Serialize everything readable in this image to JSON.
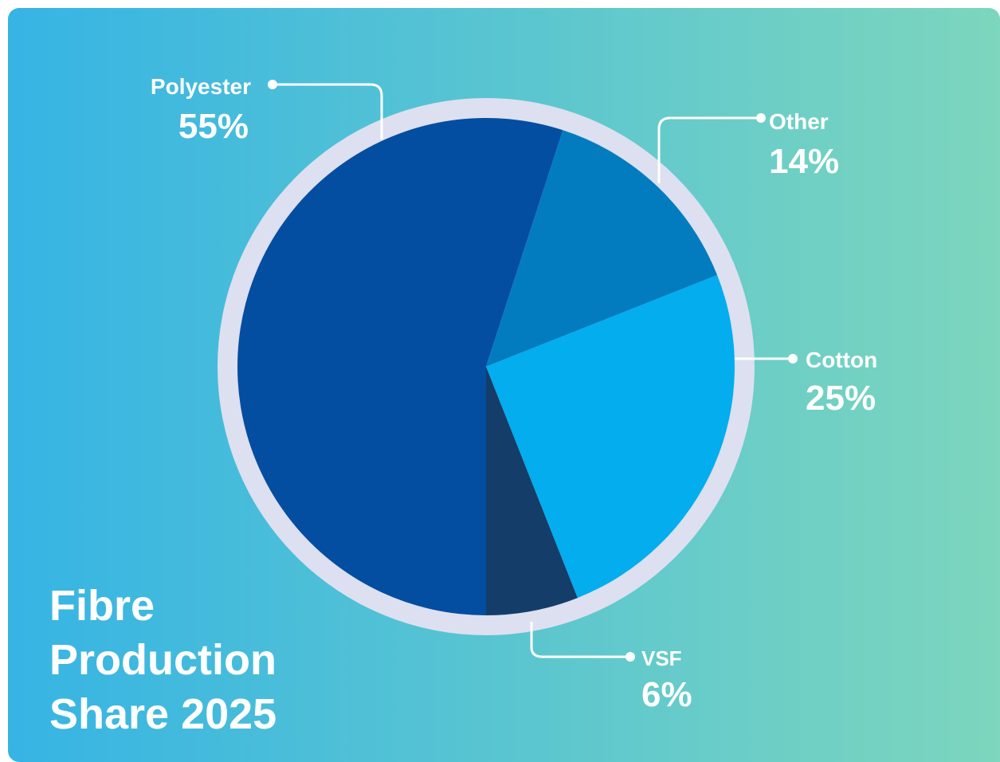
{
  "chart_data": {
    "type": "pie",
    "title": "Fibre\nProduction\nShare 2025",
    "slices": [
      {
        "label": "Polyester",
        "value": 55,
        "display": "55%",
        "color": "#034EA1"
      },
      {
        "label": "Other",
        "value": 14,
        "display": "14%",
        "color": "#037CBF"
      },
      {
        "label": "Cotton",
        "value": 25,
        "display": "25%",
        "color": "#03ADEE"
      },
      {
        "label": "VSF",
        "value": 6,
        "display": "6%",
        "color": "#143D6A"
      }
    ],
    "start_slice": "VSF",
    "direction": "counter-clockwise from 6 o'clock"
  },
  "colors": {
    "background_left": "#36B4E4",
    "background_right": "#7DD6BD",
    "ring": "#DDE0F0",
    "label_text": "#ffffff",
    "leader_line": "#ffffff"
  }
}
